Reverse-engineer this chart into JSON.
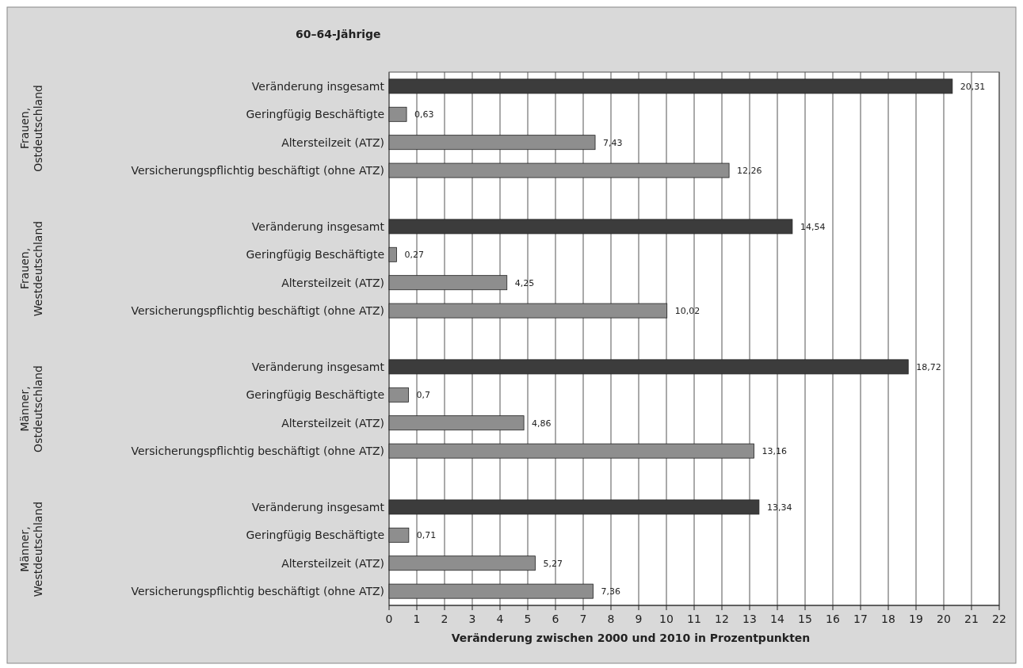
{
  "chart_data": {
    "type": "bar",
    "orientation": "horizontal",
    "title": "60–64-Jährige",
    "xlabel": "Veränderung zwischen 2000 und 2010 in Prozentpunkten",
    "categories": [
      "Veränderung insgesamt",
      "Geringfügig Beschäftigte",
      "Altersteilzeit (ATZ)",
      "Versicherungspflichtig beschäftigt (ohne ATZ)",
      null,
      "Veränderung insgesamt",
      "Geringfügig Beschäftigte",
      "Altersteilzeit (ATZ)",
      "Versicherungspflichtig beschäftigt (ohne ATZ)",
      null,
      "Veränderung insgesamt",
      "Geringfügig Beschäftigte",
      "Altersteilzeit (ATZ)",
      "Versicherungspflichtig beschäftigt (ohne ATZ)",
      null,
      "Veränderung insgesamt",
      "Geringfügig Beschäftigte",
      "Altersteilzeit (ATZ)",
      "Versicherungspflichtig beschäftigt (ohne ATZ)"
    ],
    "values": [
      20.31,
      0.63,
      7.43,
      12.26,
      null,
      14.54,
      0.27,
      4.25,
      10.02,
      null,
      18.72,
      0.7,
      4.86,
      13.16,
      null,
      13.34,
      0.71,
      5.27,
      7.36
    ],
    "colors": [
      "#3c3c3c",
      "#8e8e8e",
      "#8e8e8e",
      "#8e8e8e",
      null,
      "#3c3c3c",
      "#8e8e8e",
      "#8e8e8e",
      "#8e8e8e",
      null,
      "#3c3c3c",
      "#8e8e8e",
      "#8e8e8e",
      "#8e8e8e",
      null,
      "#3c3c3c",
      "#8e8e8e",
      "#8e8e8e",
      "#8e8e8e"
    ],
    "value_labels": [
      "20,31",
      "0,63",
      "7,43",
      "12,26",
      null,
      "14,54",
      "0,27",
      "4,25",
      "10,02",
      null,
      "18,72",
      "0,7",
      "4,86",
      "13,16",
      null,
      "13,34",
      "0,71",
      "5,27",
      "7,36"
    ],
    "xlim": [
      0,
      22
    ],
    "xticks": [
      0,
      1,
      2,
      3,
      4,
      5,
      6,
      7,
      8,
      9,
      10,
      11,
      12,
      13,
      14,
      15,
      16,
      17,
      18,
      19,
      20,
      21,
      22
    ],
    "grid": "x",
    "annotations": [
      "Frauen, Ostdeutschland",
      "Frauen, Westdeutschland",
      "Männer, Ostdeutschland",
      "Männer, Westdeutschland"
    ]
  }
}
